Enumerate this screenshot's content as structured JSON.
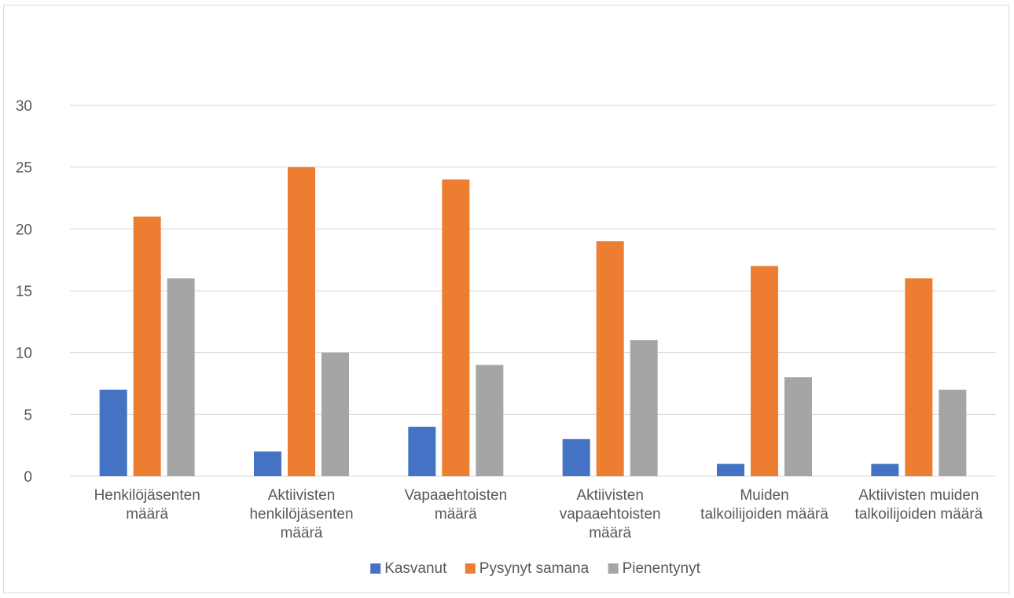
{
  "chart_data": {
    "type": "bar",
    "title": "",
    "xlabel": "",
    "ylabel": "",
    "ylim": [
      0,
      30
    ],
    "yticks": [
      0,
      5,
      10,
      15,
      20,
      25,
      30
    ],
    "grid": true,
    "legend_position": "bottom",
    "categories": [
      [
        "Henkilöjäsenten",
        "määrä"
      ],
      [
        "Aktiivisten",
        "henkilöjäsenten",
        "määrä"
      ],
      [
        "Vapaaehtoisten",
        "määrä"
      ],
      [
        "Aktiivisten",
        "vapaaehtoisten",
        "määrä"
      ],
      [
        "Muiden",
        "talkoilijoiden määrä"
      ],
      [
        "Aktiivisten muiden",
        "talkoilijoiden määrä"
      ]
    ],
    "series": [
      {
        "name": "Kasvanut",
        "color": "#4472c4",
        "values": [
          7,
          2,
          4,
          3,
          1,
          1
        ]
      },
      {
        "name": "Pysynyt samana",
        "color": "#ed7d31",
        "values": [
          21,
          25,
          24,
          19,
          17,
          16
        ]
      },
      {
        "name": "Pienentynyt",
        "color": "#a5a5a5",
        "values": [
          16,
          10,
          9,
          11,
          8,
          7
        ]
      }
    ]
  }
}
